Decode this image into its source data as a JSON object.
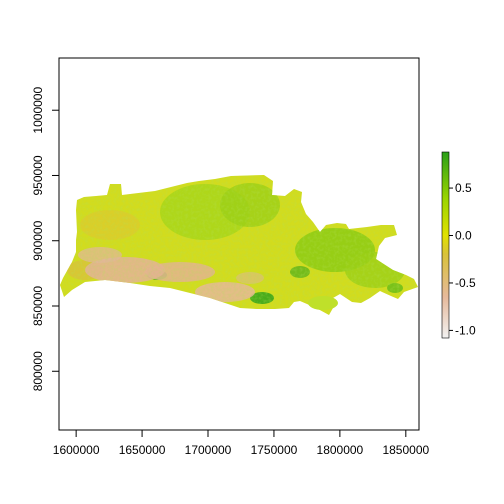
{
  "map": {
    "x_ticks": [
      "1600000",
      "1650000",
      "1700000",
      "1750000",
      "1800000",
      "1850000"
    ],
    "y_ticks": [
      "800000",
      "850000",
      "900000",
      "950000",
      "1000000"
    ],
    "x_range": [
      1587000,
      1860000
    ],
    "y_range": [
      755000,
      1040000
    ],
    "layer": "raster-values"
  },
  "legend": {
    "labels": [
      "0.5",
      "0.0",
      "-0.5",
      "-1.0"
    ],
    "values": [
      0.5,
      0.0,
      -0.5,
      -1.0
    ],
    "min": -1.08,
    "max": 0.88,
    "colors": [
      "#f2f2f2",
      "#e6b99b",
      "#d9c23a",
      "#e1e100",
      "#9ad400",
      "#2a9f18"
    ]
  }
}
